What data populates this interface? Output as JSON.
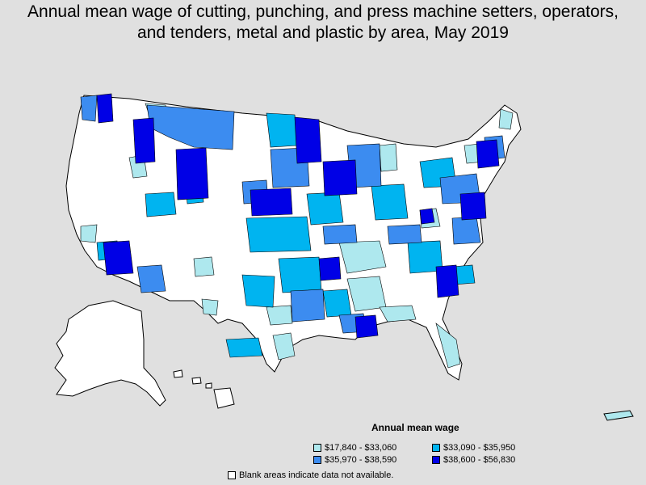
{
  "title": {
    "line1": "Annual mean wage of cutting, punching, and press machine setters, operators,",
    "line2": "and tenders, metal and plastic by area, May 2019"
  },
  "legend": {
    "title": "Annual mean wage",
    "items": [
      {
        "label": "$17,840 - $33,060",
        "color": "#aee8ee"
      },
      {
        "label": "$33,090 - $35,950",
        "color": "#00b4f0"
      },
      {
        "label": "$35,970 - $38,590",
        "color": "#3c8cf0"
      },
      {
        "label": "$38,600 - $56,830",
        "color": "#0000e6"
      }
    ]
  },
  "note": "Blank areas indicate data not available.",
  "colors": {
    "background": "#e0e0e0",
    "blank": "#ffffff",
    "border": "#000000"
  }
}
